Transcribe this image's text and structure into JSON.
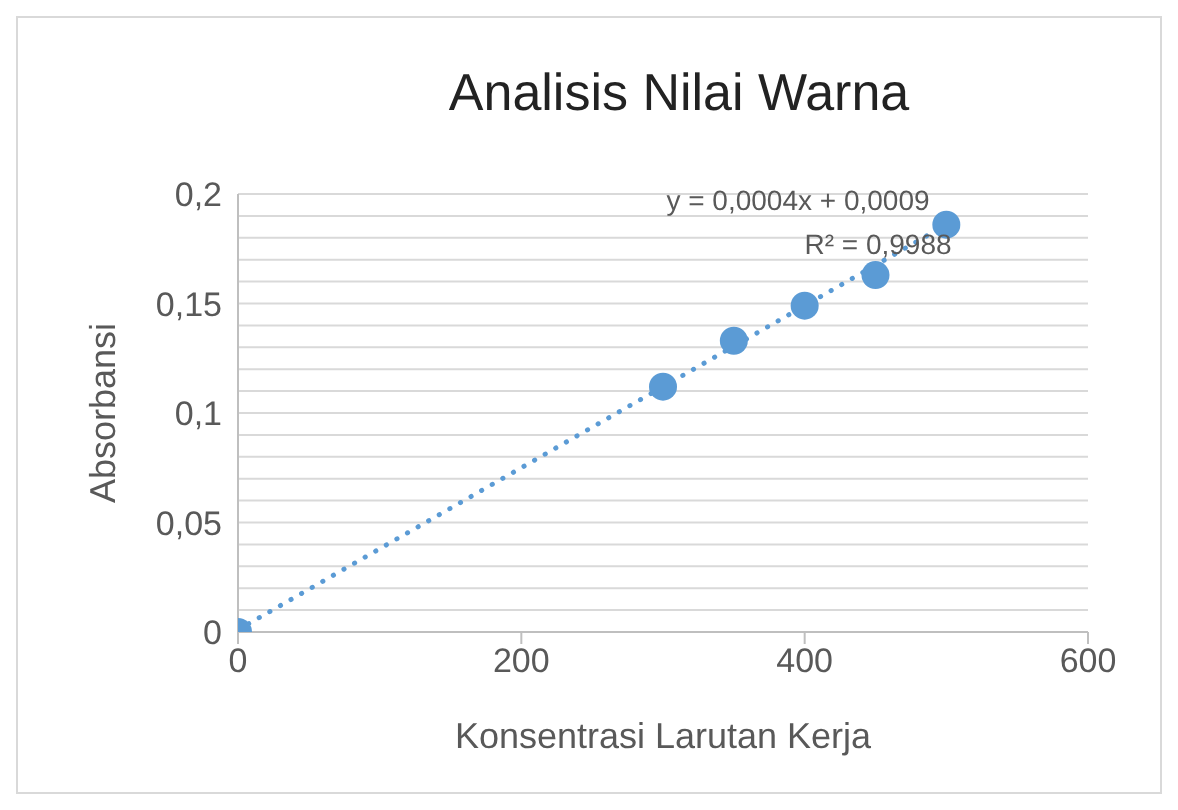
{
  "chart_data": {
    "type": "scatter",
    "title": "Analisis Nilai Warna",
    "xlabel": "Konsentrasi Larutan Kerja",
    "ylabel": "Absorbansi",
    "x": [
      0,
      300,
      350,
      400,
      450,
      500
    ],
    "series": [
      {
        "color": "#5b9bd5",
        "values": [
          0,
          0.112,
          0.133,
          0.149,
          0.163,
          0.186
        ],
        "marker": "circle"
      },
      {
        "type": "line",
        "color": "#5b9bd5",
        "x": [
          0,
          500
        ],
        "values": [
          0.001,
          0.186
        ],
        "line_style": "dotted"
      }
    ],
    "xlim": [
      0,
      600
    ],
    "xticks": [
      0,
      200,
      400,
      600
    ],
    "ylim": [
      0,
      0.2
    ],
    "yticks": [
      {
        "value": 0,
        "label": "0"
      },
      {
        "value": 0.01,
        "label": null
      },
      {
        "value": 0.02,
        "label": null
      },
      {
        "value": 0.03,
        "label": null
      },
      {
        "value": 0.04,
        "label": null
      },
      {
        "value": 0.05,
        "label": "0,05"
      },
      {
        "value": 0.06,
        "label": null
      },
      {
        "value": 0.07,
        "label": null
      },
      {
        "value": 0.08,
        "label": null
      },
      {
        "value": 0.09,
        "label": null
      },
      {
        "value": 0.1,
        "label": "0,1"
      },
      {
        "value": 0.11,
        "label": null
      },
      {
        "value": 0.12,
        "label": null
      },
      {
        "value": 0.13,
        "label": null
      },
      {
        "value": 0.14,
        "label": null
      },
      {
        "value": 0.15,
        "label": "0,15"
      },
      {
        "value": 0.16,
        "label": null
      },
      {
        "value": 0.17,
        "label": null
      },
      {
        "value": 0.18,
        "label": null
      },
      {
        "value": 0.19,
        "label": null
      },
      {
        "value": 0.2,
        "label": "0,2"
      }
    ],
    "grid": "y",
    "annotations": [
      "y = 0,0004x + 0,0009",
      "R² = 0,9988"
    ]
  }
}
